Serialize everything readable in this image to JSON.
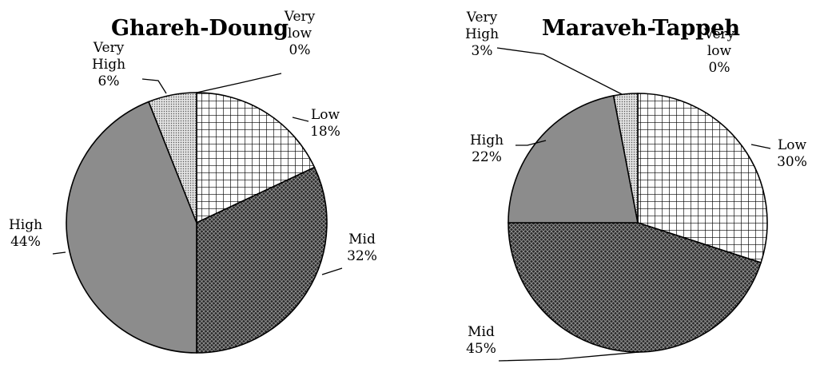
{
  "chart_data": [
    {
      "type": "pie",
      "title": "Ghareh-Doung",
      "categories": [
        "Very low",
        "Low",
        "Mid",
        "High",
        "Very High"
      ],
      "values": [
        0,
        18,
        32,
        44,
        6
      ],
      "percent_labels": [
        "0%",
        "18%",
        "32%",
        "44%",
        "6%"
      ],
      "label_lines": [
        [
          "Very",
          "low"
        ],
        [
          "Low"
        ],
        [
          "Mid"
        ],
        [
          "High"
        ],
        [
          "Very",
          "High"
        ]
      ]
    },
    {
      "type": "pie",
      "title": "Maraveh-Tappeh",
      "categories": [
        "Very low",
        "Low",
        "Mid",
        "High",
        "Very High"
      ],
      "values": [
        0,
        30,
        45,
        22,
        3
      ],
      "percent_labels": [
        "0%",
        "30%",
        "45%",
        "22%",
        "3%"
      ],
      "label_lines": [
        [
          "Very",
          "low"
        ],
        [
          "Low"
        ],
        [
          "Mid"
        ],
        [
          "High"
        ],
        [
          "Very",
          "High"
        ]
      ]
    }
  ],
  "patterns": [
    "none",
    "grid",
    "crosshatch-dark",
    "solid-gray",
    "dots"
  ],
  "colors": {
    "high_fill": "#8c8c8c",
    "mid_fill": "#2b2b2b",
    "background": "#ffffff"
  }
}
